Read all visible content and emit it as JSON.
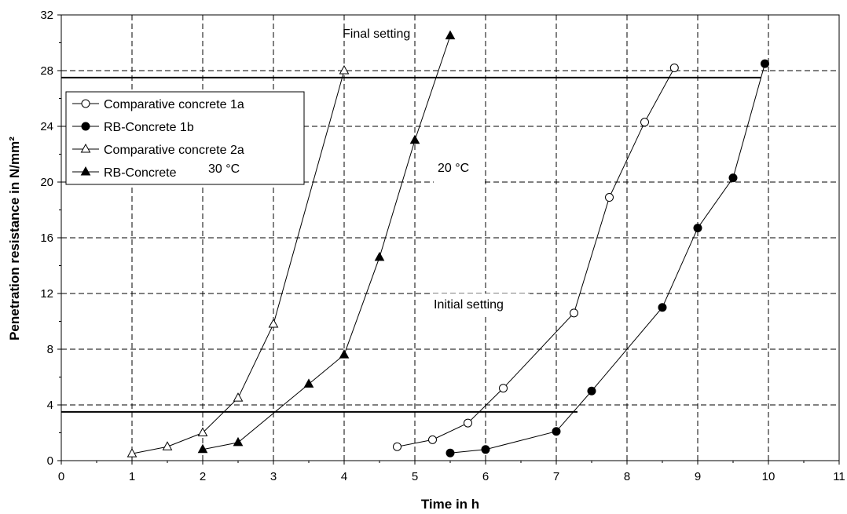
{
  "chart_data": {
    "type": "line",
    "xlabel": "Time in h",
    "ylabel": "Penetration resistance in N/mm²",
    "xlim": [
      0,
      11
    ],
    "ylim": [
      0,
      32
    ],
    "xticks": [
      0,
      1,
      2,
      3,
      4,
      5,
      6,
      7,
      8,
      9,
      10,
      11
    ],
    "yticks": [
      0,
      4,
      8,
      12,
      16,
      20,
      24,
      28,
      32
    ],
    "grid": true,
    "legend_position": "top-left",
    "series": [
      {
        "name": "Comparative concrete 1a",
        "marker": "open-circle",
        "x": [
          4.75,
          5.25,
          5.75,
          6.25,
          7.25,
          7.75,
          8.25,
          8.67
        ],
        "y": [
          1.0,
          1.5,
          2.7,
          5.2,
          10.6,
          18.9,
          24.3,
          28.2
        ]
      },
      {
        "name": "RB-Concrete 1b",
        "marker": "filled-circle",
        "x": [
          5.5,
          6.0,
          7.0,
          7.5,
          8.5,
          9.0,
          9.5,
          9.95
        ],
        "y": [
          0.55,
          0.8,
          2.1,
          5.0,
          11.0,
          16.7,
          20.3,
          28.5
        ]
      },
      {
        "name": "Comparative concrete 2a",
        "marker": "open-triangle",
        "x": [
          1.0,
          1.5,
          2.0,
          2.5,
          3.0,
          4.0
        ],
        "y": [
          0.5,
          1.0,
          2.0,
          4.5,
          9.8,
          28.0
        ]
      },
      {
        "name": "RB-Concrete",
        "marker": "filled-triangle",
        "x": [
          2.0,
          2.5,
          3.5,
          4.0,
          4.5,
          5.0,
          5.5
        ],
        "y": [
          0.8,
          1.3,
          5.5,
          7.6,
          14.6,
          23.0,
          30.5
        ]
      }
    ],
    "reference_lines": [
      {
        "label": "Final setting",
        "y": 27.5,
        "x": [
          0,
          9.9
        ]
      },
      {
        "label": "Initial setting",
        "y": 3.5,
        "x": [
          0,
          7.3
        ]
      }
    ],
    "annotations": [
      "30 °C",
      "20 °C",
      "Final setting",
      "Initial setting"
    ]
  },
  "labels": {
    "final_setting": "Final setting",
    "initial_setting": "Initial setting",
    "temp_30": "30 °C",
    "temp_20": "20 °C"
  }
}
